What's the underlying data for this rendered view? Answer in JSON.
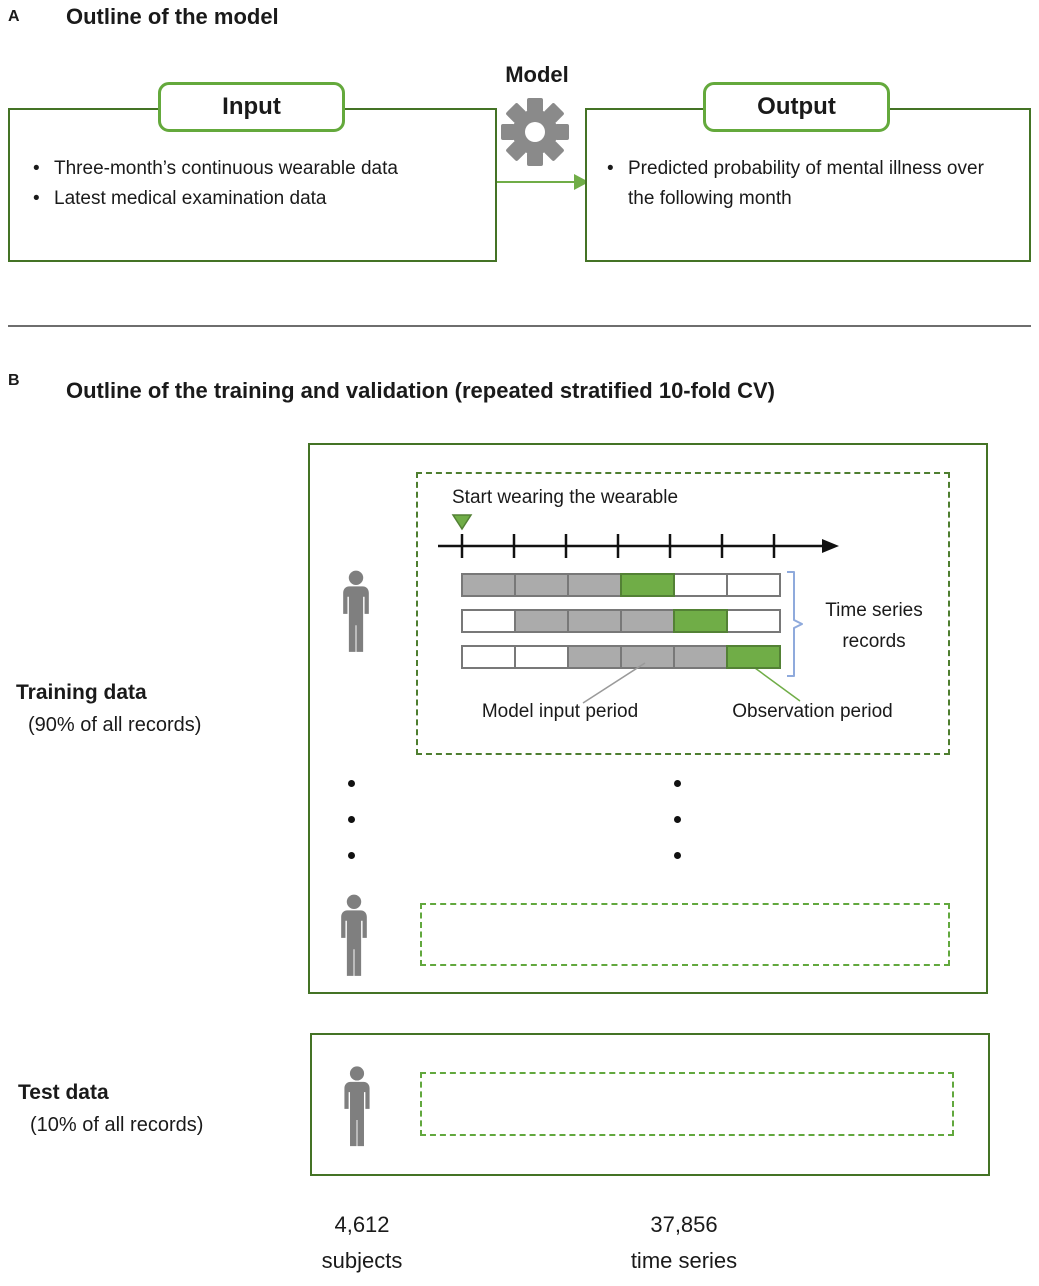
{
  "colors": {
    "box-border-green": "#447325",
    "tab-border-green": "#64a93c",
    "bright-green": "#70ad47",
    "green-dark": "#538135",
    "dashed-green": "#4e7e2f",
    "light-dash-green": "#62a83e",
    "gray-fill": "#ababab",
    "gray-border": "#787878",
    "gear-gray": "#8a8a8a",
    "icon-gray": "#7f7f7f",
    "brace-blue": "#8faadc",
    "leader-gray": "#9a9a9a",
    "divider-gray": "#6e6e6e",
    "text-black": "#1a1a1a"
  },
  "panel_a": {
    "label": "A",
    "title": "Outline of the model",
    "model_label": "Model",
    "input": {
      "tab": "Input",
      "bullets": [
        "Three-month’s continuous wearable data",
        "Latest medical examination data"
      ]
    },
    "output": {
      "tab": "Output",
      "bullets": [
        "Predicted probability of mental illness over the following month"
      ]
    }
  },
  "panel_b": {
    "label": "B",
    "title": "Outline of the training and validation (repeated stratified 10-fold CV)",
    "timeline_caption": "Start wearing the wearable",
    "records_brace_label": "Time series records",
    "model_input_label": "Model input period",
    "observation_label": "Observation period",
    "training": {
      "title": "Training data",
      "subtitle": "(90% of all records)"
    },
    "test": {
      "title": "Test data",
      "subtitle": "(10% of all records)"
    },
    "totals": {
      "subjects_value": "4,612",
      "subjects_label": "subjects",
      "timeseries_value": "37,856",
      "timeseries_label": "time series"
    }
  },
  "timeseries": {
    "dots_per_column": 3,
    "segments_per_record": 6,
    "rows": [
      [
        "gray",
        "gray",
        "gray",
        "green",
        "white",
        "white"
      ],
      [
        "white",
        "gray",
        "gray",
        "gray",
        "green",
        "white"
      ],
      [
        "white",
        "white",
        "gray",
        "gray",
        "gray",
        "green"
      ]
    ],
    "legend": {
      "gray": "Model input period",
      "green": "Observation period",
      "white": "unused"
    }
  },
  "icons": {
    "model": "gear-icon",
    "subject": "person-icon",
    "start_marker": "triangle-down-marker",
    "flow": "arrow-right-icon",
    "grouping": "brace-icon"
  }
}
